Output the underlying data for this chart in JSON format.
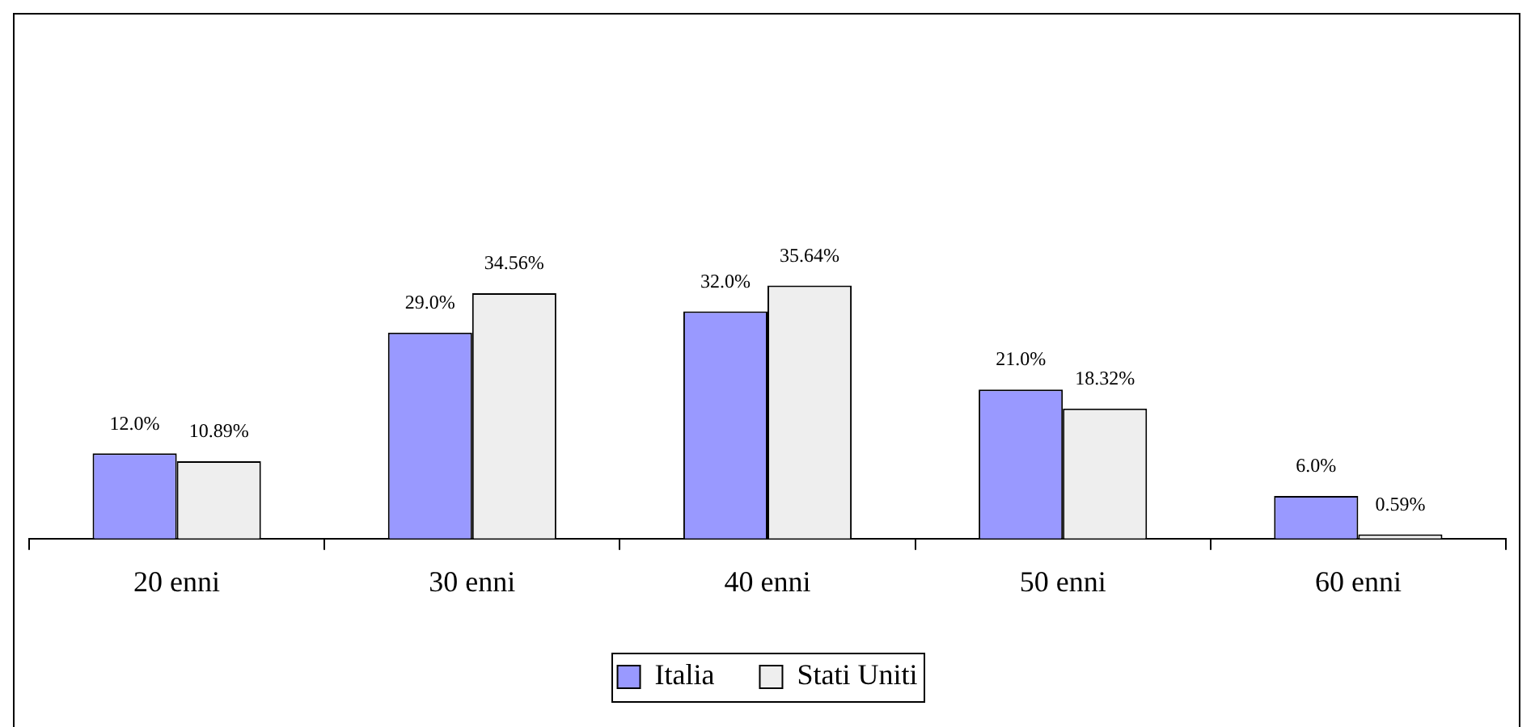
{
  "chart_data": {
    "type": "bar",
    "categories": [
      "20 enni",
      "30 enni",
      "40 enni",
      "50 enni",
      "60 enni"
    ],
    "series": [
      {
        "name": "Italia",
        "color": "#9999ff",
        "values": [
          12.0,
          29.0,
          32.0,
          21.0,
          6.0
        ],
        "value_labels": [
          "12.0%",
          "29.0%",
          "32.0%",
          "21.0%",
          "6.0%"
        ]
      },
      {
        "name": "Stati Uniti",
        "color": "#eeeeee",
        "values": [
          10.89,
          34.56,
          35.64,
          18.32,
          0.59
        ],
        "value_labels": [
          "10.89%",
          "34.56%",
          "35.64%",
          "18.32%",
          "0.59%"
        ]
      }
    ],
    "legend": "bottom"
  }
}
